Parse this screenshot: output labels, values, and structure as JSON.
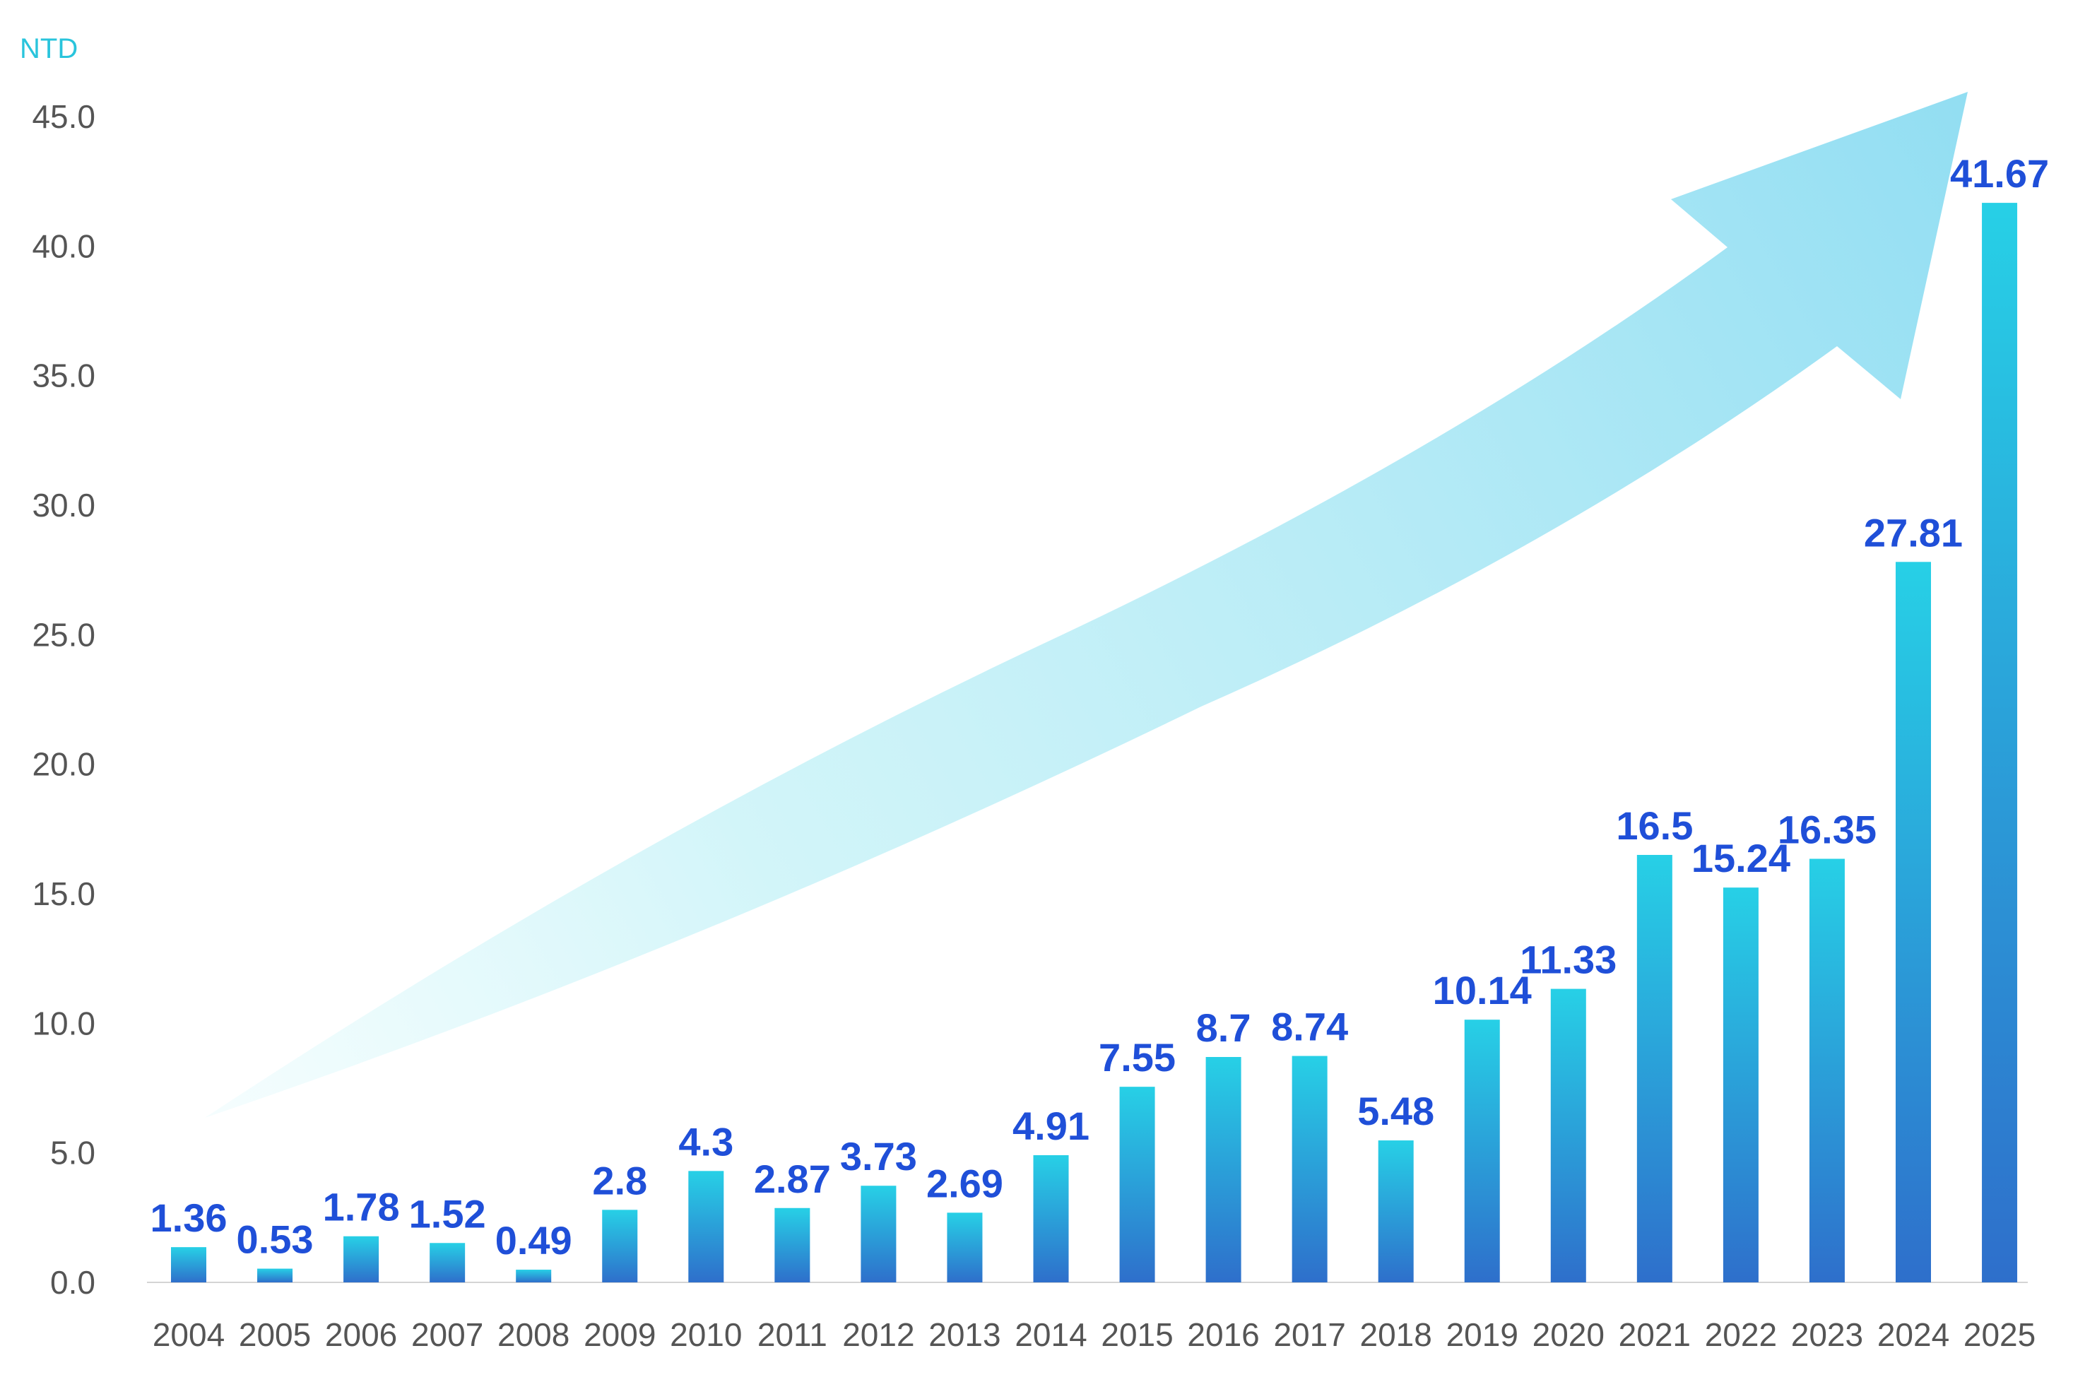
{
  "chart_data": {
    "type": "bar",
    "unit_label": "NTD",
    "categories": [
      "2004",
      "2005",
      "2006",
      "2007",
      "2008",
      "2009",
      "2010",
      "2011",
      "2012",
      "2013",
      "2014",
      "2015",
      "2016",
      "2017",
      "2018",
      "2019",
      "2020",
      "2021",
      "2022",
      "2023",
      "2024",
      "2025"
    ],
    "values": [
      1.36,
      0.53,
      1.78,
      1.52,
      0.49,
      2.8,
      4.3,
      2.87,
      3.73,
      2.69,
      4.91,
      7.55,
      8.7,
      8.74,
      5.48,
      10.14,
      11.33,
      16.5,
      15.24,
      16.35,
      27.81,
      41.67
    ],
    "value_labels": [
      "1.36",
      "0.53",
      "1.78",
      "1.52",
      "0.49",
      "2.8",
      "4.3",
      "2.87",
      "3.73",
      "2.69",
      "4.91",
      "7.55",
      "8.7",
      "8.74",
      "5.48",
      "10.14",
      "11.33",
      "16.5",
      "15.24",
      "16.35",
      "27.81",
      "41.67"
    ],
    "y_ticks": [
      "0.0",
      "5.0",
      "10.0",
      "15.0",
      "20.0",
      "25.0",
      "30.0",
      "35.0",
      "40.0",
      "45.0"
    ],
    "ylim": [
      0,
      45
    ],
    "grid": false,
    "bar_gradient": {
      "top": "#27d0e6",
      "bottom": "#2e6fcb"
    },
    "label_color": "#1f4fd8",
    "arrow_color": "#7fd8f0"
  }
}
